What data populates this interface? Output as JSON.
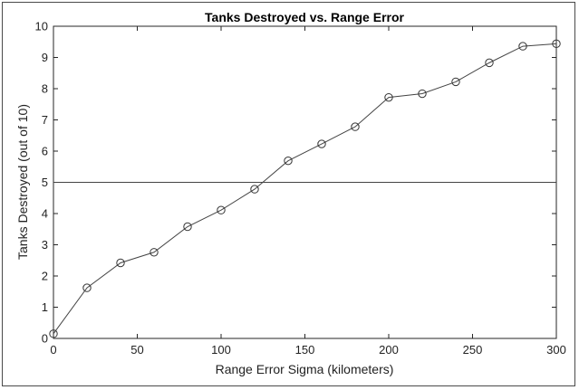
{
  "chart_data": {
    "type": "line",
    "title": "Tanks Destroyed vs. Range Error",
    "xlabel": "Range Error Sigma (kilometers)",
    "ylabel": "Tanks Destroyed (out of 10)",
    "xlim": [
      0,
      300
    ],
    "ylim": [
      0,
      10
    ],
    "x_ticks": [
      0,
      50,
      100,
      150,
      200,
      250,
      300
    ],
    "y_ticks": [
      0,
      1,
      2,
      3,
      4,
      5,
      6,
      7,
      8,
      9,
      10
    ],
    "grid": false,
    "marker": "circle",
    "line_color": "#444444",
    "series": [
      {
        "x": [
          0,
          20,
          40,
          60,
          80,
          100,
          120,
          140,
          160,
          180,
          200,
          220,
          240,
          260,
          280,
          300
        ],
        "values": [
          0.15,
          1.62,
          2.42,
          2.76,
          3.58,
          4.11,
          4.78,
          5.69,
          6.23,
          6.78,
          7.72,
          7.84,
          8.22,
          8.83,
          9.36,
          9.44
        ]
      }
    ],
    "reference_lines": [
      {
        "axis": "y",
        "value": 5
      }
    ]
  }
}
